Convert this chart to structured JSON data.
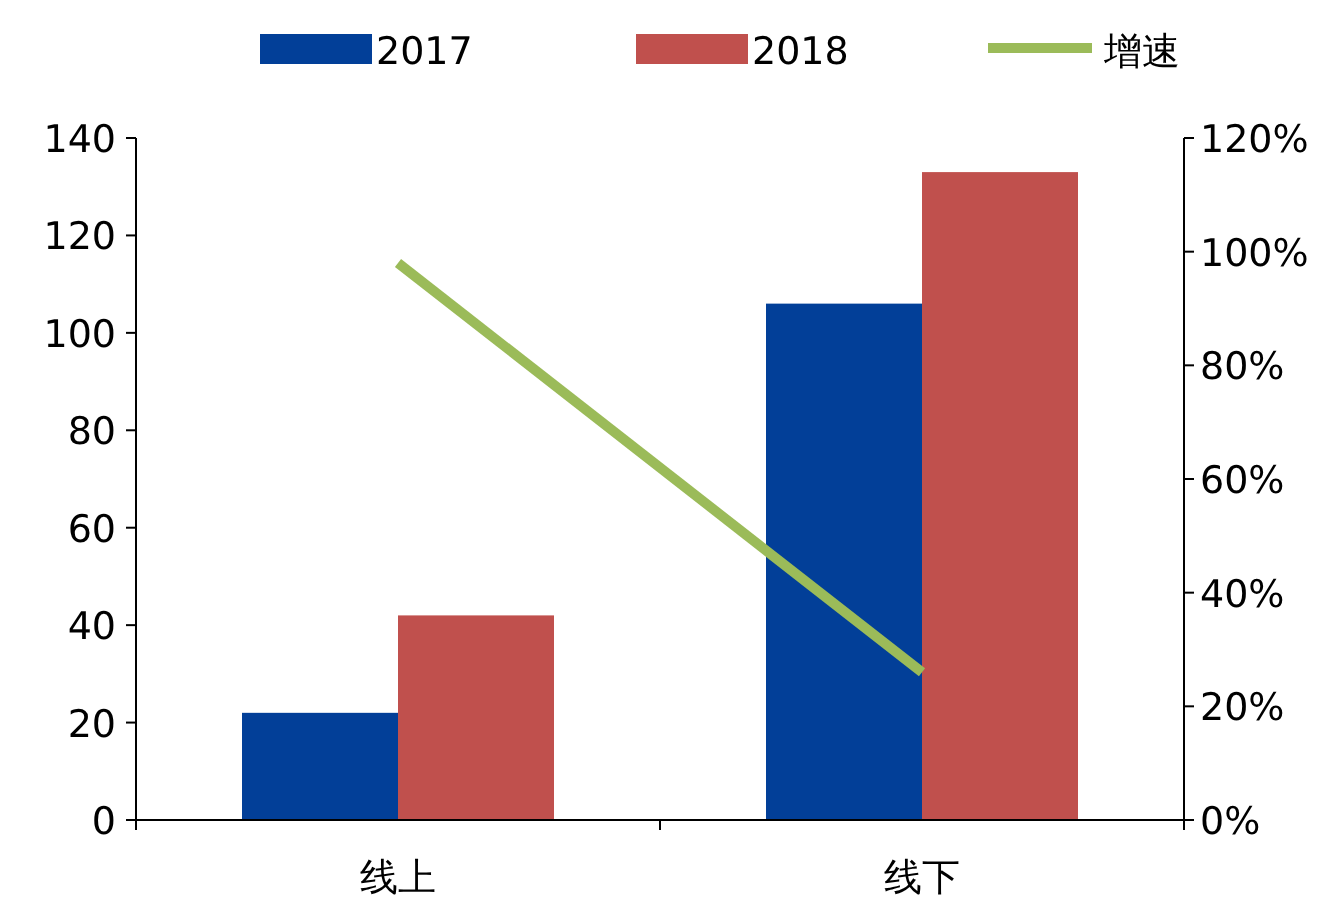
{
  "chart_data": {
    "type": "bar",
    "categories": [
      "线上",
      "线下"
    ],
    "series": [
      {
        "name": "2017",
        "color": "#023f98",
        "values": [
          22,
          106
        ]
      },
      {
        "name": "2018",
        "color": "#c0504d",
        "values": [
          42,
          133
        ]
      },
      {
        "name": "增速",
        "type": "line",
        "axis": "y2",
        "color": "#9bbb59",
        "values": [
          98,
          26
        ]
      }
    ],
    "ylim": [
      0,
      140
    ],
    "yticks": [
      0,
      20,
      40,
      60,
      80,
      100,
      120,
      140
    ],
    "y2lim": [
      0,
      120
    ],
    "y2ticks": [
      {
        "value": 0,
        "label": "0%"
      },
      {
        "value": 20,
        "label": "20%"
      },
      {
        "value": 40,
        "label": "40%"
      },
      {
        "value": 60,
        "label": "60%"
      },
      {
        "value": 80,
        "label": "80%"
      },
      {
        "value": 100,
        "label": "100%"
      },
      {
        "value": 120,
        "label": "120%"
      }
    ],
    "legend": "top",
    "grid": false
  }
}
